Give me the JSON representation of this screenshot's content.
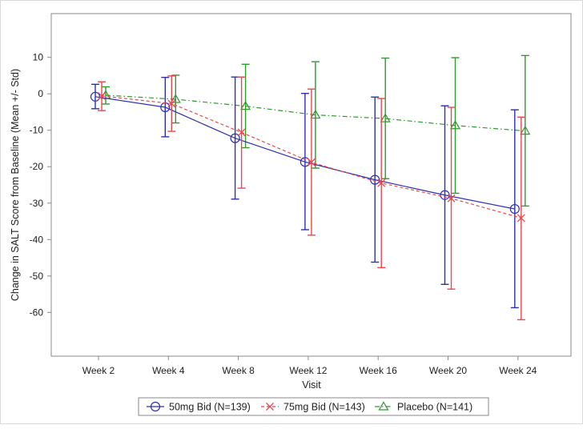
{
  "chart_data": {
    "type": "line",
    "title": "",
    "xlabel": "Visit",
    "ylabel": "Change in SALT Score from Baseline (Mean +/- Std)",
    "categories": [
      "Week 2",
      "Week 4",
      "Week 8",
      "Week 12",
      "Week 16",
      "Week 20",
      "Week 24"
    ],
    "y_ticks": [
      10,
      0,
      -10,
      -20,
      -30,
      -40,
      -50,
      -60
    ],
    "ylim": [
      -72,
      22
    ],
    "grid": false,
    "legend_position": "bottom",
    "error_bars": "mean +/- std",
    "series": [
      {
        "name": "50mg Bid (N=139)",
        "color": "#2e2eb8",
        "marker": "circle",
        "line_style": "solid",
        "values": [
          -0.8,
          -3.7,
          -12.2,
          -18.7,
          -23.6,
          -27.8,
          -31.6
        ],
        "lower": [
          -4.1,
          -11.8,
          -28.9,
          -37.3,
          -46.2,
          -52.3,
          -58.7
        ],
        "upper": [
          2.6,
          4.5,
          4.6,
          0.1,
          -0.9,
          -3.3,
          -4.4
        ]
      },
      {
        "name": "75mg Bid (N=143)",
        "color": "#e8474c",
        "marker": "x",
        "line_style": "dashed",
        "values": [
          -0.6,
          -2.7,
          -10.6,
          -18.8,
          -24.5,
          -28.7,
          -34.1
        ],
        "lower": [
          -4.6,
          -10.3,
          -25.9,
          -38.8,
          -47.7,
          -53.6,
          -62.0
        ],
        "upper": [
          3.3,
          4.9,
          4.6,
          1.3,
          -1.3,
          -3.7,
          -6.4
        ]
      },
      {
        "name": "Placebo (N=141)",
        "color": "#2f9a2f",
        "marker": "triangle",
        "line_style": "dash-dot",
        "values": [
          -0.4,
          -1.5,
          -3.4,
          -5.8,
          -6.8,
          -8.7,
          -10.2
        ],
        "lower": [
          -2.8,
          -8.0,
          -14.8,
          -20.4,
          -23.3,
          -27.3,
          -30.8
        ],
        "upper": [
          1.9,
          5.1,
          8.1,
          8.8,
          9.8,
          9.9,
          10.5
        ]
      }
    ]
  }
}
